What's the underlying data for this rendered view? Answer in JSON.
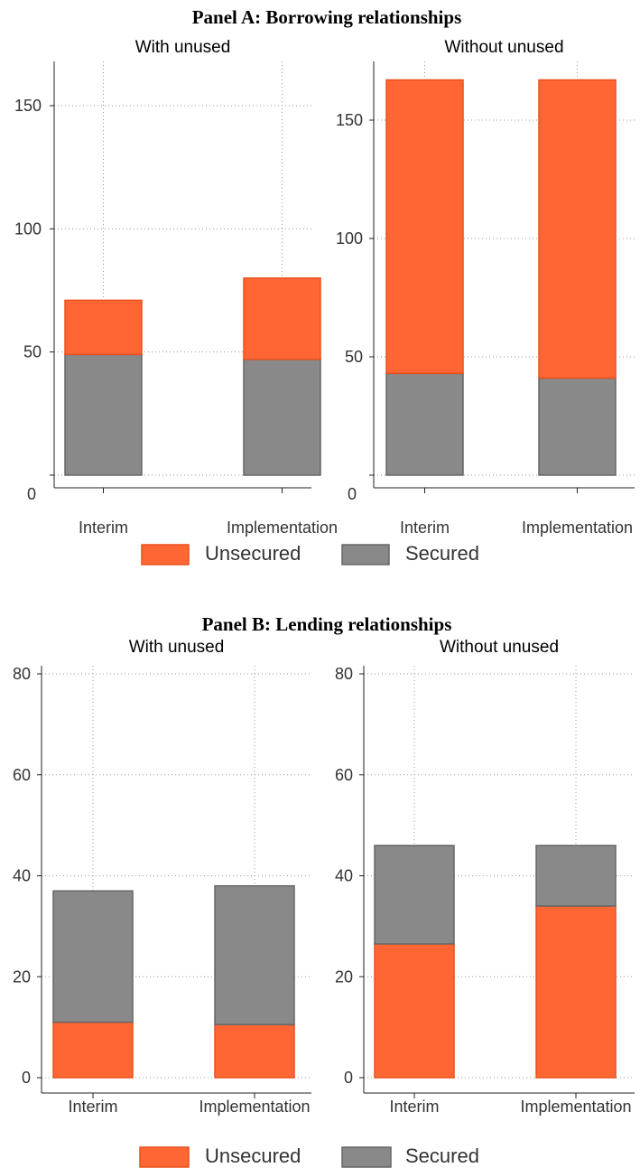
{
  "colors": {
    "unsecured": "#ff6633",
    "unsecured_edge": "#e8501c",
    "secured": "#898989",
    "secured_edge": "#666666"
  },
  "legend": {
    "unsecured_label": "Unsecured",
    "secured_label": "Secured"
  },
  "chart_data": [
    {
      "type": "bar",
      "stacked": true,
      "panel_title": "Panel A: Borrowing relationships",
      "title": "With unused",
      "categories": [
        "Interim",
        "Implementation"
      ],
      "series": [
        {
          "name": "Secured",
          "values": [
            49,
            47
          ]
        },
        {
          "name": "Unsecured",
          "values": [
            22,
            33
          ]
        }
      ],
      "ylim": [
        0,
        170
      ],
      "yticks": [
        0,
        50,
        100,
        150
      ],
      "grid": true,
      "stack_order": [
        "Secured",
        "Unsecured"
      ]
    },
    {
      "type": "bar",
      "stacked": true,
      "panel_title": "Panel A: Borrowing relationships",
      "title": "Without unused",
      "categories": [
        "Interim",
        "Implementation"
      ],
      "series": [
        {
          "name": "Secured",
          "values": [
            43,
            41
          ]
        },
        {
          "name": "Unsecured",
          "values": [
            124,
            126
          ]
        }
      ],
      "ylim": [
        0,
        170
      ],
      "yticks": [
        0,
        50,
        100,
        150
      ],
      "grid": true,
      "stack_order": [
        "Secured",
        "Unsecured"
      ]
    },
    {
      "type": "bar",
      "stacked": true,
      "panel_title": "Panel B: Lending relationships",
      "title": "With unused",
      "categories": [
        "Interim",
        "Implementation"
      ],
      "series": [
        {
          "name": "Unsecured",
          "values": [
            11,
            10.5
          ]
        },
        {
          "name": "Secured",
          "values": [
            26,
            27.5
          ]
        }
      ],
      "ylim": [
        0,
        85
      ],
      "yticks": [
        0,
        20,
        40,
        60,
        80
      ],
      "grid": true,
      "stack_order": [
        "Unsecured",
        "Secured"
      ]
    },
    {
      "type": "bar",
      "stacked": true,
      "panel_title": "Panel B: Lending relationships",
      "title": "Without unused",
      "categories": [
        "Interim",
        "Implementation"
      ],
      "series": [
        {
          "name": "Unsecured",
          "values": [
            26.5,
            34
          ]
        },
        {
          "name": "Secured",
          "values": [
            19.5,
            12
          ]
        }
      ],
      "ylim": [
        0,
        85
      ],
      "yticks": [
        0,
        20,
        40,
        60,
        80
      ],
      "grid": true,
      "stack_order": [
        "Unsecured",
        "Secured"
      ]
    }
  ]
}
